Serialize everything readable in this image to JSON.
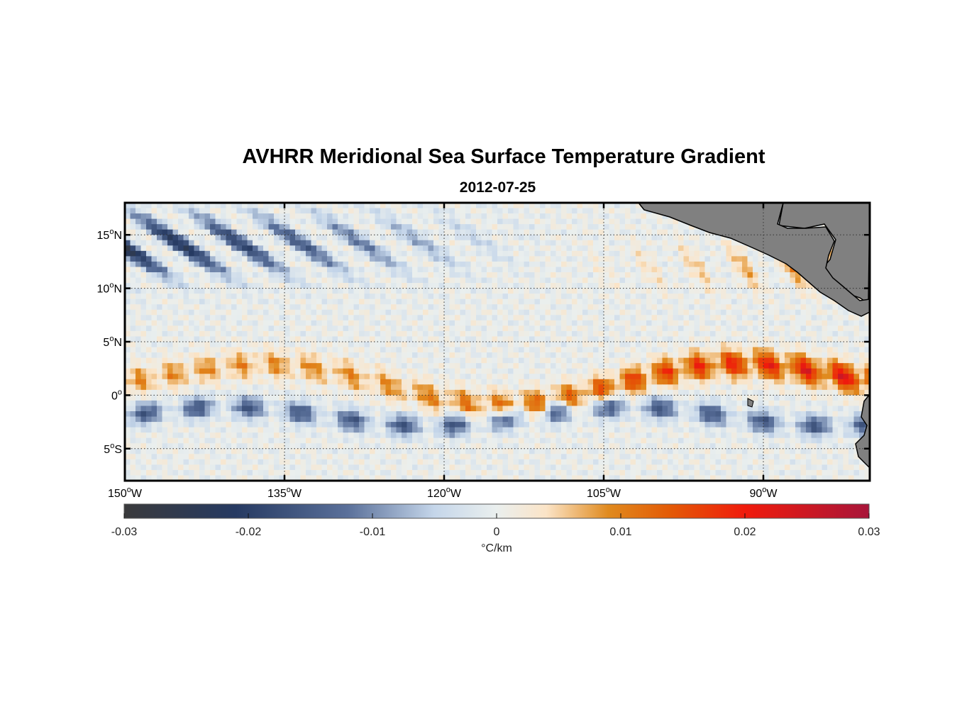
{
  "title": "AVHRR Meridional Sea Surface Temperature Gradient",
  "subtitle": "2012-07-25",
  "chart_data": {
    "type": "heatmap",
    "variable": "meridional SST gradient",
    "units": "°C/km",
    "x_range_lon": [
      -150,
      -80
    ],
    "y_range_lat": [
      -8,
      18
    ],
    "x_ticks": [
      {
        "value": -150,
        "num": "150",
        "hemi": "W"
      },
      {
        "value": -135,
        "num": "135",
        "hemi": "W"
      },
      {
        "value": -120,
        "num": "120",
        "hemi": "W"
      },
      {
        "value": -105,
        "num": "105",
        "hemi": "W"
      },
      {
        "value": -90,
        "num": "90",
        "hemi": "W"
      }
    ],
    "y_ticks": [
      {
        "value": 15,
        "num": "15",
        "hemi": "N"
      },
      {
        "value": 10,
        "num": "10",
        "hemi": "N"
      },
      {
        "value": 5,
        "num": "5",
        "hemi": "N"
      },
      {
        "value": 0,
        "num": "0",
        "hemi": ""
      },
      {
        "value": -5,
        "num": "5",
        "hemi": "S"
      }
    ],
    "colorbar": {
      "range": [
        -0.03,
        0.03
      ],
      "ticks": [
        {
          "value": -0.03,
          "label": "-0.03"
        },
        {
          "value": -0.02,
          "label": "-0.02"
        },
        {
          "value": -0.01,
          "label": "-0.01"
        },
        {
          "value": 0,
          "label": "0"
        },
        {
          "value": 0.01,
          "label": "0.01"
        },
        {
          "value": 0.02,
          "label": "0.02"
        },
        {
          "value": 0.03,
          "label": "0.03"
        }
      ],
      "label": "°C/km",
      "stops": [
        {
          "value": -0.03,
          "color": "#3a3a3c"
        },
        {
          "value": -0.021,
          "color": "#263a62"
        },
        {
          "value": -0.012,
          "color": "#5a709a"
        },
        {
          "value": -0.005,
          "color": "#c5d6ea"
        },
        {
          "value": 0,
          "color": "#eaefee"
        },
        {
          "value": 0.004,
          "color": "#fbe4c7"
        },
        {
          "value": 0.009,
          "color": "#e08a1e"
        },
        {
          "value": 0.014,
          "color": "#e35a06"
        },
        {
          "value": 0.02,
          "color": "#f01b0c"
        },
        {
          "value": 0.03,
          "color": "#a8153a"
        }
      ]
    },
    "features": [
      {
        "name": "equatorial front",
        "lat_center": 1.5,
        "sign": "positive",
        "peak": 0.025
      },
      {
        "name": "south equatorial band",
        "lat_center": -2,
        "sign": "negative",
        "peak": -0.018
      },
      {
        "name": "north tropical band",
        "lat_center": 14,
        "sign": "negative",
        "peak": -0.02
      },
      {
        "name": "coastal band",
        "lat_center": 13,
        "sign": "positive",
        "peak": 0.012
      }
    ],
    "land_color": "#808080"
  }
}
